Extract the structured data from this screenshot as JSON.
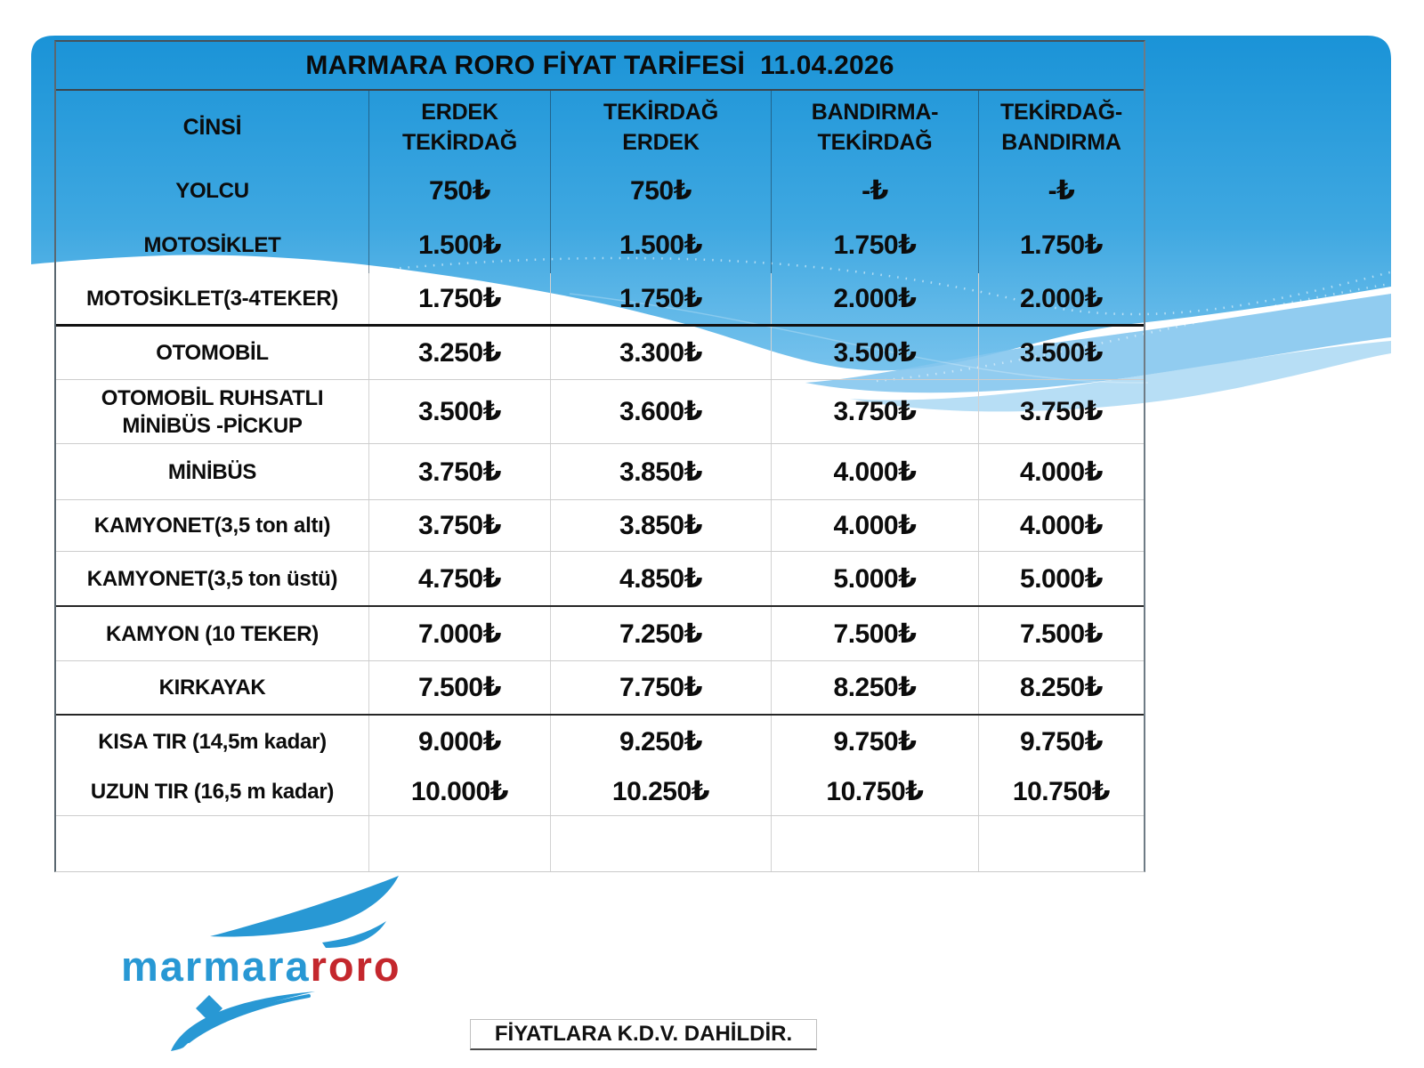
{
  "page": {
    "background": "#ffffff",
    "wave_blue_top": "#1a93d7",
    "wave_blue_bottom": "#7cc5ee",
    "wave_overlay_mid": "#85c7ee",
    "wave_overlay_light": "#afdaf4"
  },
  "table": {
    "title": "MARMARA RORO FİYAT TARİFESİ  11.04.2026",
    "columns": [
      {
        "label": "CİNSİ"
      },
      {
        "line1": "ERDEK",
        "line2": "TEKİRDAĞ"
      },
      {
        "line1": "TEKİRDAĞ",
        "line2": "ERDEK"
      },
      {
        "line1": "BANDIRMA-",
        "line2": "TEKİRDAĞ"
      },
      {
        "line1": "TEKİRDAĞ-",
        "line2": "BANDIRMA"
      }
    ],
    "rows": [
      {
        "label": "YOLCU",
        "values": [
          "750₺",
          "750₺",
          "-₺",
          "-₺"
        ]
      },
      {
        "label": "MOTOSİKLET",
        "values": [
          "1.500₺",
          "1.500₺",
          "1.750₺",
          "1.750₺"
        ]
      },
      {
        "label": "MOTOSİKLET(3-4TEKER)",
        "values": [
          "1.750₺",
          "1.750₺",
          "2.000₺",
          "2.000₺"
        ]
      },
      {
        "label": "OTOMOBİL",
        "values": [
          "3.250₺",
          "3.300₺",
          "3.500₺",
          "3.500₺"
        ]
      },
      {
        "label": "OTOMOBİL RUHSATLI MİNİBÜS -PİCKUP",
        "lines": [
          "OTOMOBİL RUHSATLI",
          "MİNİBÜS -PİCKUP"
        ],
        "values": [
          "3.500₺",
          "3.600₺",
          "3.750₺",
          "3.750₺"
        ]
      },
      {
        "label": "MİNİBÜS",
        "values": [
          "3.750₺",
          "3.850₺",
          "4.000₺",
          "4.000₺"
        ]
      },
      {
        "label": "KAMYONET(3,5 ton altı)",
        "values": [
          "3.750₺",
          "3.850₺",
          "4.000₺",
          "4.000₺"
        ]
      },
      {
        "label": "KAMYONET(3,5 ton üstü)",
        "values": [
          "4.750₺",
          "4.850₺",
          "5.000₺",
          "5.000₺"
        ]
      },
      {
        "label": "KAMYON (10 TEKER)",
        "values": [
          "7.000₺",
          "7.250₺",
          "7.500₺",
          "7.500₺"
        ]
      },
      {
        "label": "KIRKAYAK",
        "values": [
          "7.500₺",
          "7.750₺",
          "8.250₺",
          "8.250₺"
        ]
      },
      {
        "label": "KISA TIR (14,5m kadar)",
        "values": [
          "9.000₺",
          "9.250₺",
          "9.750₺",
          "9.750₺"
        ]
      },
      {
        "label": "UZUN TIR (16,5 m kadar)",
        "values": [
          "10.000₺",
          "10.250₺",
          "10.750₺",
          "10.750₺"
        ]
      },
      {
        "label": "",
        "values": [
          "",
          "",
          "",
          ""
        ]
      }
    ]
  },
  "note": {
    "text": "FİYATLARA K.D.V. DAHİLDİR."
  },
  "logo": {
    "part1": "marmara",
    "part2": "roro",
    "blue": "#2898d4",
    "red": "#c4272d"
  }
}
